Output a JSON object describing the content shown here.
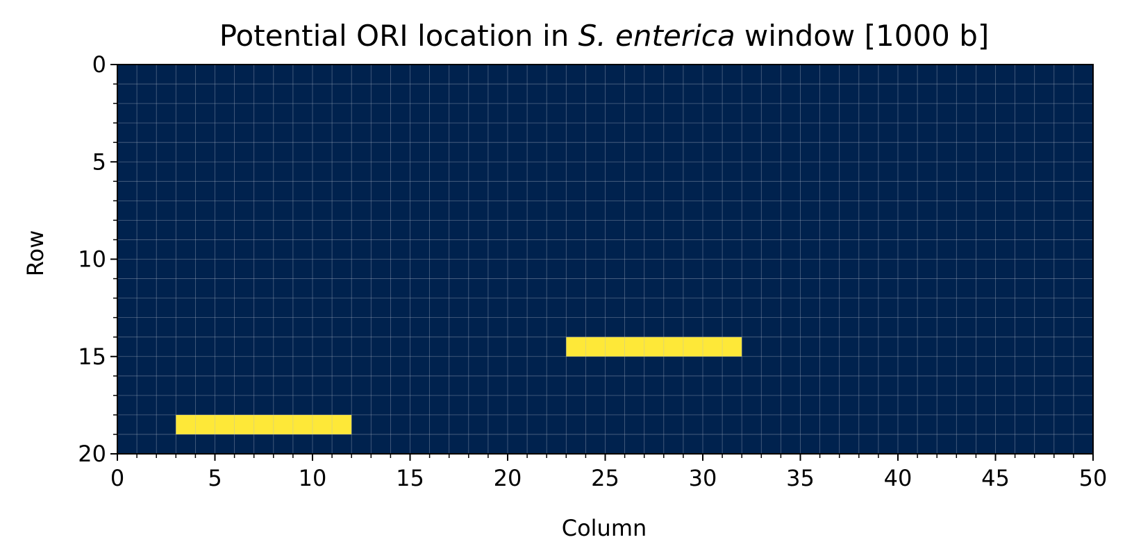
{
  "chart_data": {
    "type": "heatmap",
    "title_prefix": "Potential ORI location in ",
    "title_species": "S. enterica",
    "title_suffix": " window [1000 b]",
    "xlabel": "Column",
    "ylabel": "Row",
    "xlim": [
      0,
      50
    ],
    "ylim": [
      0,
      20
    ],
    "y_inverted": true,
    "x_major_ticks": [
      "0",
      "5",
      "10",
      "15",
      "20",
      "25",
      "30",
      "35",
      "40",
      "45",
      "50"
    ],
    "y_major_ticks": [
      "0",
      "5",
      "10",
      "15",
      "20"
    ],
    "grid": true,
    "rows": 20,
    "columns": 50,
    "background_value": 0,
    "highlighted_cells": [
      {
        "row": 14,
        "col_start": 23,
        "col_end": 31,
        "value": 1
      },
      {
        "row": 18,
        "col_start": 3,
        "col_end": 11,
        "value": 1
      }
    ],
    "colors": {
      "low": "#00224e",
      "high": "#fee838",
      "grid": "#b0b8c8"
    }
  }
}
